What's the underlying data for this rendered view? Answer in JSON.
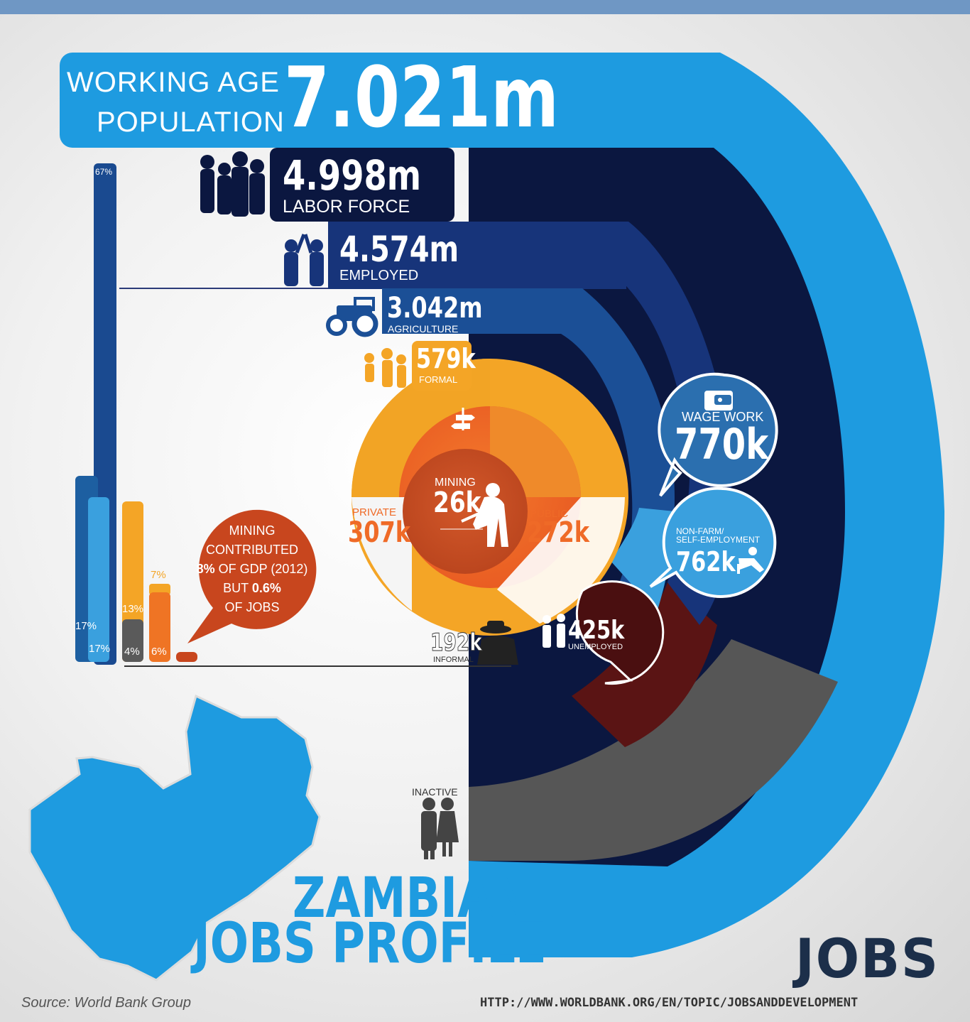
{
  "title": {
    "line1": "ZAMBIAN",
    "line2": "JOBS PROFILE"
  },
  "working_age": {
    "label1": "WORKING AGE",
    "label2": "POPULATION",
    "value": "7.021m"
  },
  "labor_force": {
    "value": "4.998m",
    "label": "LABOR FORCE"
  },
  "employed": {
    "value": "4.574m",
    "label": "EMPLOYED"
  },
  "agriculture": {
    "value": "3.042m",
    "label": "AGRICULTURE"
  },
  "formal": {
    "value": "579k",
    "label": "FORMAL"
  },
  "private": {
    "label": "PRIVATE",
    "value": "307k"
  },
  "public": {
    "label": "PUBLIC",
    "value": "272k"
  },
  "mining": {
    "label": "MINING",
    "value": "26k"
  },
  "informal": {
    "value": "192k",
    "label": "INFORMAL"
  },
  "wage_work": {
    "label": "WAGE WORK",
    "value": "770k"
  },
  "self_employment": {
    "label1": "NON-FARM/",
    "label2": "SELF-EMPLOYMENT",
    "value": "762k"
  },
  "unemployed": {
    "value": "425k",
    "label": "UNEMPLOYED"
  },
  "inactive": {
    "label": "INACTIVE"
  },
  "mining_note": {
    "l1": "MINING",
    "l2": "CONTRIBUTED",
    "l3a": "8%",
    "l3b": " OF GDP (2012)",
    "l4a": "BUT ",
    "l4b": "0.6%",
    "l5": "OF JOBS"
  },
  "bars": {
    "tall_label": "67%",
    "dark_label": "17%",
    "light_label": "17%",
    "yellow_label": "13%",
    "grey_label": "4%",
    "orange_top_label": "7%",
    "orange_label": "6%"
  },
  "logo": "JOBS",
  "source": "Source: World Bank Group",
  "url": "http://www.worldbank.org/en/topic/jobsanddevelopment",
  "colors": {
    "sky": "#1e9be0",
    "navy": "#0b1740",
    "mid_blue": "#17347a",
    "royal": "#1b4f96",
    "wage": "#2b6faf",
    "self": "#3aa0de",
    "yellow": "#f4a526",
    "orange": "#ef6a27",
    "maroon": "#5a1414",
    "grey": "#555555"
  },
  "icons": [
    "people-group-icon",
    "high-five-icon",
    "tractor-icon",
    "family-icon",
    "signpost-icon",
    "miner-icon",
    "wallet-icon",
    "relaxing-person-icon",
    "unemployed-pair-icon",
    "spy-icon",
    "couple-icon",
    "zambia-map-icon"
  ]
}
